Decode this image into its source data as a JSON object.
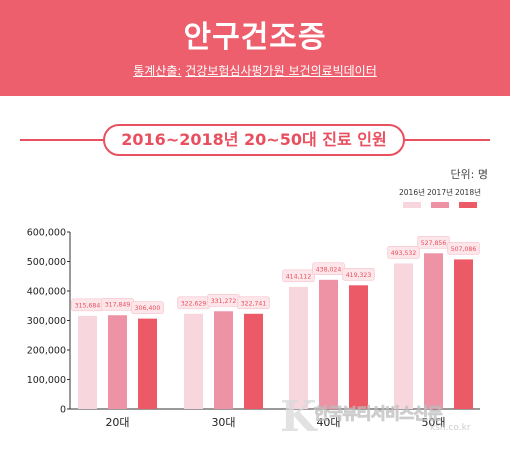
{
  "header": {
    "title": "안구건조증",
    "source_label": "통계산출:",
    "source_text": "건강보험심사평가원 보건의료빅데이터"
  },
  "subtitle_pill": "2016~2018년 20~50대 진료 인원",
  "unit_label": "단위: 명",
  "watermark": {
    "text": "한국뷰티서비스신문",
    "url": "ksn.co.kr"
  },
  "colors": {
    "accent": "#ee5f6e",
    "series": [
      "#f7d6de",
      "#ee93a6",
      "#ec5a67"
    ],
    "label_box": "#fde6ea",
    "label_text": "#e9505f"
  },
  "chart_data": {
    "type": "bar",
    "title": "2016~2018년 20~50대 진료 인원",
    "xlabel": "",
    "ylabel": "",
    "categories": [
      "20대",
      "30대",
      "40대",
      "50대"
    ],
    "series": [
      {
        "name": "2016년",
        "values": [
          315684,
          322629,
          414112,
          493532
        ]
      },
      {
        "name": "2017년",
        "values": [
          317849,
          331272,
          438024,
          527856
        ]
      },
      {
        "name": "2018년",
        "values": [
          306400,
          322741,
          419323,
          507086
        ]
      }
    ],
    "data_labels": [
      [
        "315,684",
        "322,629",
        "414,112",
        "493,532"
      ],
      [
        "317,849",
        "331,272",
        "438,024",
        "527,856"
      ],
      [
        "306,400",
        "322,741",
        "419,323",
        "507,086"
      ]
    ],
    "ylim": [
      0,
      600000
    ],
    "yticks": [
      0,
      100000,
      200000,
      300000,
      400000,
      500000,
      600000
    ],
    "ytick_labels": [
      "0",
      "100,000",
      "200,000",
      "300,000",
      "400,000",
      "500,000",
      "600,000"
    ],
    "grid": false,
    "legend": "top-right"
  }
}
